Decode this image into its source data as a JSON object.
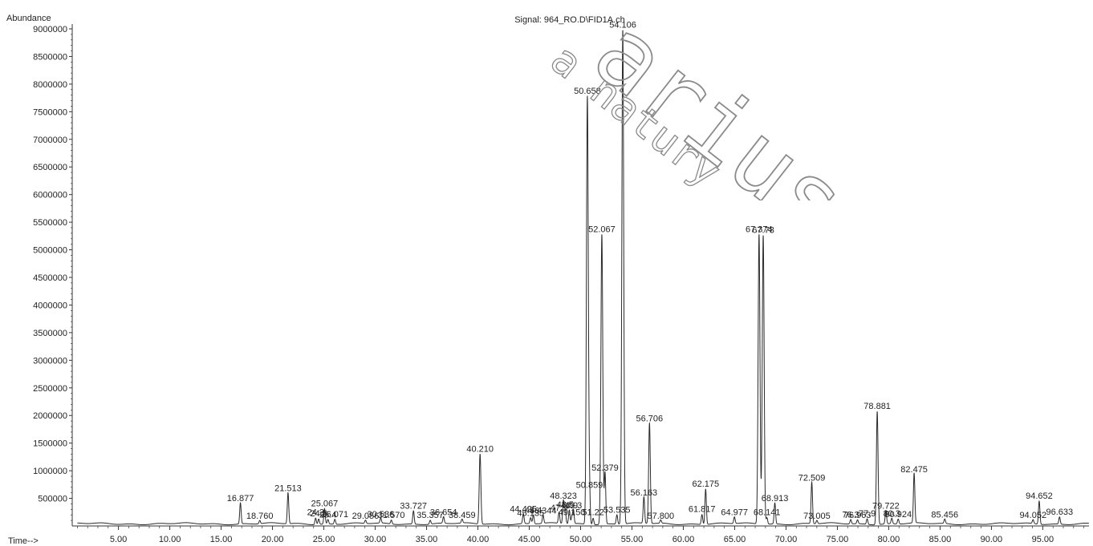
{
  "chart_data": {
    "type": "line",
    "title": "Signal: 964_RO.D\\FID1A.ch",
    "ylabel": "Abundance",
    "xlabel": "Time-->",
    "xlim": [
      0.5,
      99.5
    ],
    "ylim": [
      0,
      9000000
    ],
    "x_ticks": [
      "5.00",
      "10.00",
      "15.00",
      "20.00",
      "25.00",
      "30.00",
      "35.00",
      "40.00",
      "45.00",
      "50.00",
      "55.00",
      "60.00",
      "65.00",
      "70.00",
      "75.00",
      "80.00",
      "85.00",
      "90.00",
      "95.00"
    ],
    "y_ticks": [
      "500000",
      "1000000",
      "1500000",
      "2000000",
      "2500000",
      "3000000",
      "3500000",
      "4000000",
      "4500000",
      "5000000",
      "5500000",
      "6000000",
      "6500000",
      "7000000",
      "7500000",
      "8000000",
      "8500000",
      "9000000"
    ],
    "grid": false,
    "peaks": [
      {
        "rt": 16.877,
        "label": "16.877",
        "height": 380000
      },
      {
        "rt": 18.76,
        "label": "18.760",
        "height": 60000
      },
      {
        "rt": 21.513,
        "label": "21.513",
        "height": 560000
      },
      {
        "rt": 24.2,
        "label": "24.2",
        "height": 120000
      },
      {
        "rt": 24.5,
        "label": "24.5",
        "height": 100000
      },
      {
        "rt": 25.067,
        "label": "25.067",
        "height": 280000
      },
      {
        "rt": 25.4,
        "label": "25.4",
        "height": 80000
      },
      {
        "rt": 26.071,
        "label": "26.071",
        "height": 90000
      },
      {
        "rt": 29.056,
        "label": "29.056",
        "height": 60000
      },
      {
        "rt": 30.536,
        "label": "30.536",
        "height": 90000
      },
      {
        "rt": 31.57,
        "label": "31.570",
        "height": 70000
      },
      {
        "rt": 33.727,
        "label": "33.727",
        "height": 240000
      },
      {
        "rt": 35.357,
        "label": "35.357",
        "height": 70000
      },
      {
        "rt": 36.654,
        "label": "36.654",
        "height": 120000
      },
      {
        "rt": 38.459,
        "label": "38.459",
        "height": 70000
      },
      {
        "rt": 40.21,
        "label": "40.210",
        "height": 1270000
      },
      {
        "rt": 44.425,
        "label": "44.425",
        "height": 180000
      },
      {
        "rt": 45.135,
        "label": "45.135",
        "height": 110000
      },
      {
        "rt": 45.4,
        "label": "45.4",
        "height": 160000
      },
      {
        "rt": 46.344,
        "label": "46.344",
        "height": 150000
      },
      {
        "rt": 47.9,
        "label": "47.9",
        "height": 200000
      },
      {
        "rt": 48.323,
        "label": "48.323",
        "height": 420000
      },
      {
        "rt": 48.5,
        "label": "48.5",
        "height": 260000
      },
      {
        "rt": 48.9,
        "label": "48.9",
        "height": 250000
      },
      {
        "rt": 49.15,
        "label": "49.150",
        "height": 120000
      },
      {
        "rt": 49.3,
        "label": "49.3",
        "height": 250000
      },
      {
        "rt": 50.658,
        "label": "50.658",
        "height": 7750000
      },
      {
        "rt": 50.859,
        "label": "50.859",
        "height": 620000
      },
      {
        "rt": 51.22,
        "label": "51.22",
        "height": 120000
      },
      {
        "rt": 52.067,
        "label": "52.067",
        "height": 5250000
      },
      {
        "rt": 52.379,
        "label": "52.379",
        "height": 930000
      },
      {
        "rt": 53.535,
        "label": "53.535",
        "height": 170000
      },
      {
        "rt": 54.106,
        "label": "54.106",
        "height": 8950000
      },
      {
        "rt": 56.163,
        "label": "56.163",
        "height": 480000
      },
      {
        "rt": 56.706,
        "label": "56.706",
        "height": 1820000
      },
      {
        "rt": 57.8,
        "label": "57.800",
        "height": 60000
      },
      {
        "rt": 61.817,
        "label": "61.817",
        "height": 180000
      },
      {
        "rt": 62.175,
        "label": "62.175",
        "height": 640000
      },
      {
        "rt": 64.977,
        "label": "64.977",
        "height": 120000
      },
      {
        "rt": 67.374,
        "label": "67.374",
        "height": 5250000
      },
      {
        "rt": 67.78,
        "label": "67.78",
        "height": 5230000
      },
      {
        "rt": 68.141,
        "label": "68.141",
        "height": 120000
      },
      {
        "rt": 68.913,
        "label": "68.913",
        "height": 380000
      },
      {
        "rt": 72.509,
        "label": "72.509",
        "height": 750000
      },
      {
        "rt": 73.005,
        "label": "73.005",
        "height": 60000
      },
      {
        "rt": 76.3,
        "label": "76.3",
        "height": 80000
      },
      {
        "rt": 76.963,
        "label": "76.963",
        "height": 70000
      },
      {
        "rt": 77.9,
        "label": "77.9",
        "height": 100000
      },
      {
        "rt": 78.881,
        "label": "78.881",
        "height": 2050000
      },
      {
        "rt": 79.722,
        "label": "79.722",
        "height": 240000
      },
      {
        "rt": 80.3,
        "label": "80.3",
        "height": 100000
      },
      {
        "rt": 80.924,
        "label": "80.924",
        "height": 90000
      },
      {
        "rt": 82.475,
        "label": "82.475",
        "height": 900000
      },
      {
        "rt": 85.456,
        "label": "85.456",
        "height": 80000
      },
      {
        "rt": 94.052,
        "label": "94.052",
        "height": 70000
      },
      {
        "rt": 94.652,
        "label": "94.652",
        "height": 420000
      },
      {
        "rt": 96.633,
        "label": "96.633",
        "height": 130000
      }
    ]
  }
}
